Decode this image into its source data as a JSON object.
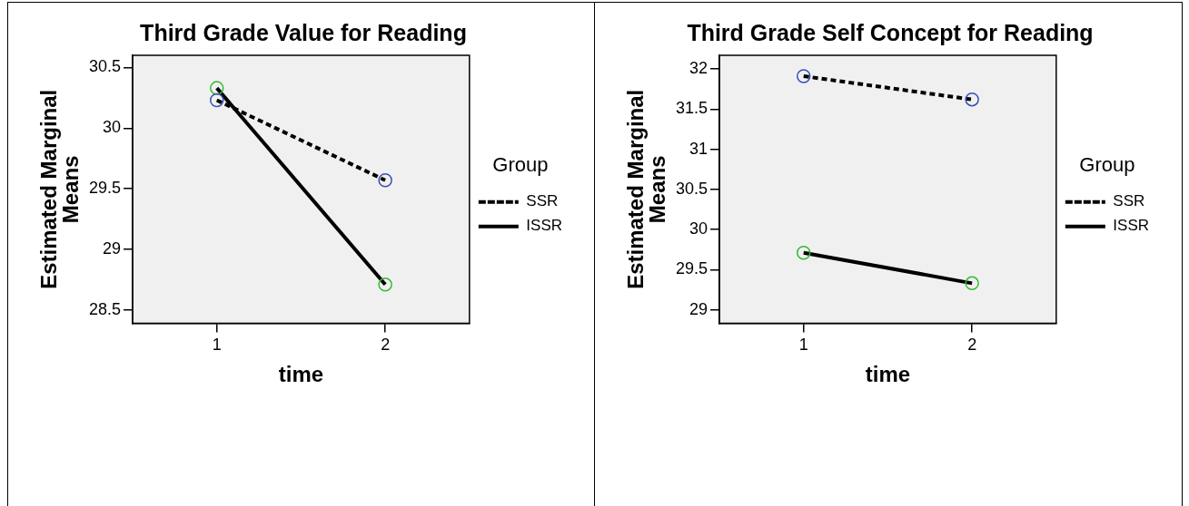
{
  "chart_data": [
    {
      "type": "line",
      "title": "Third Grade Value for Reading",
      "xlabel": "time",
      "ylabel": "Estimated Marginal Means",
      "legend_title": "Group",
      "categories": [
        "1",
        "2"
      ],
      "ylim": [
        28.39,
        30.6
      ],
      "yticks": [
        28.5,
        29,
        29.5,
        30,
        30.5
      ],
      "grid": false,
      "legend": "right",
      "marker": "circle",
      "series": [
        {
          "name": "SSR",
          "color": "#000000",
          "colors": [
            "#3b4fb5",
            "#3b4fb5"
          ],
          "line_style": "dashed",
          "values": [
            30.23,
            29.57
          ]
        },
        {
          "name": "ISSR",
          "color": "#000000",
          "colors": [
            "#33bb33",
            "#33bb33"
          ],
          "line_style": "solid",
          "values": [
            30.33,
            28.71
          ]
        }
      ]
    },
    {
      "type": "line",
      "title": "Third Grade Self Concept for Reading",
      "xlabel": "time",
      "ylabel": "Estimated Marginal Means",
      "legend_title": "Group",
      "categories": [
        "1",
        "2"
      ],
      "ylim": [
        28.83,
        32.17
      ],
      "yticks": [
        29,
        29.5,
        30,
        30.5,
        31,
        31.5,
        32
      ],
      "grid": false,
      "legend": "right",
      "marker": "circle",
      "series": [
        {
          "name": "SSR",
          "color": "#000000",
          "colors": [
            "#3b4fb5",
            "#3b4fb5"
          ],
          "line_style": "dashed",
          "values": [
            31.91,
            31.62
          ]
        },
        {
          "name": "ISSR",
          "color": "#000000",
          "colors": [
            "#33bb33",
            "#33bb33"
          ],
          "line_style": "solid",
          "values": [
            29.71,
            29.33
          ]
        }
      ]
    }
  ]
}
